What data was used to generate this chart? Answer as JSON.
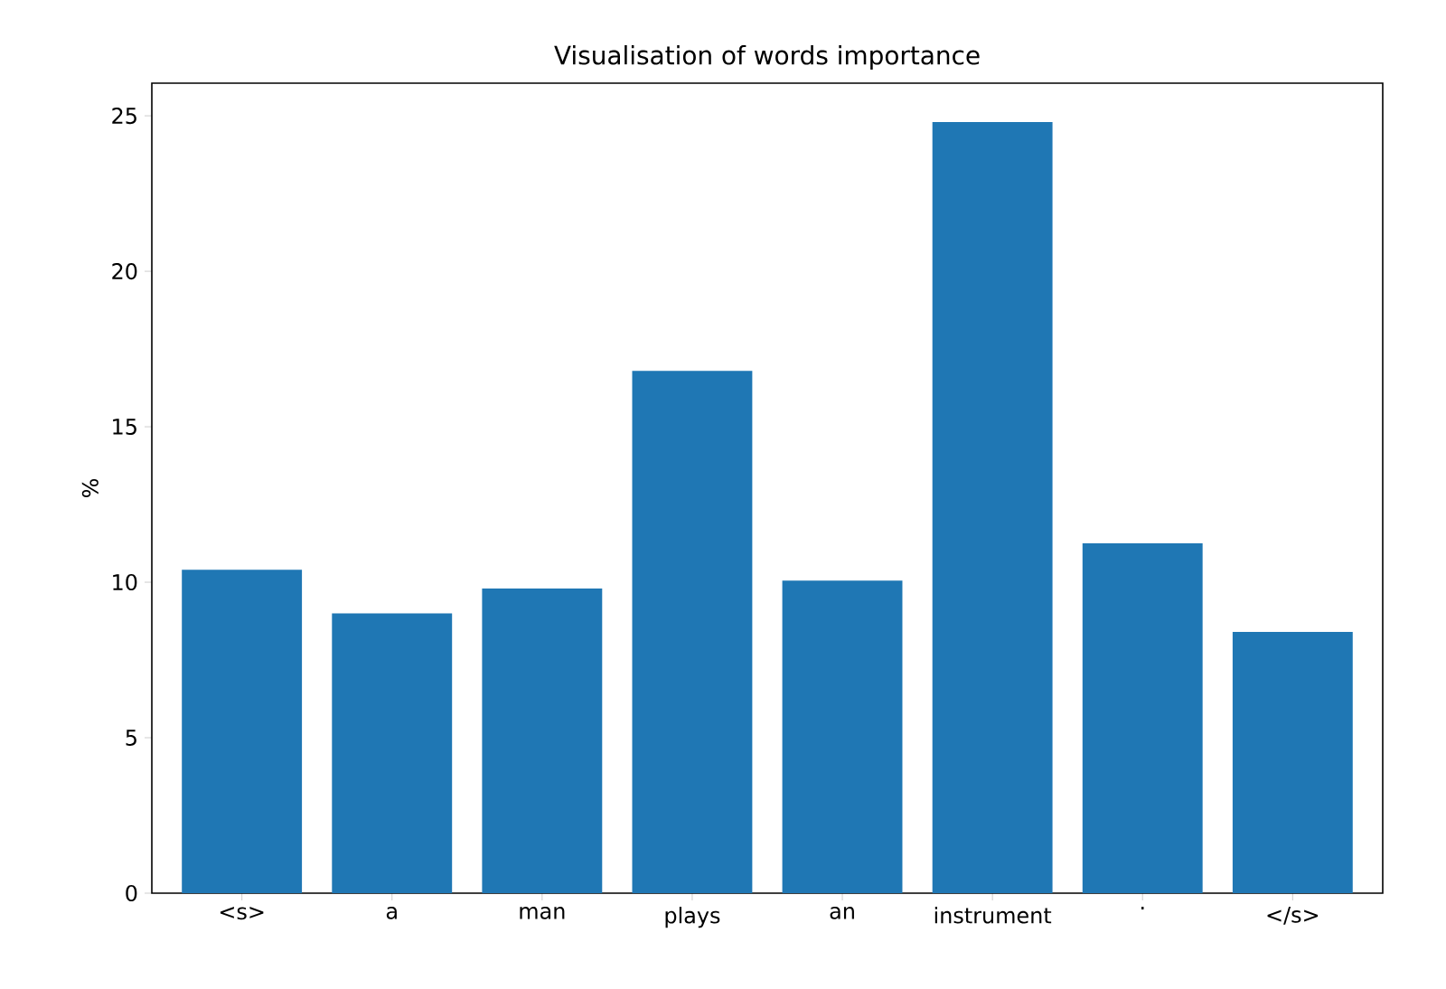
{
  "chart_data": {
    "type": "bar",
    "title": "Visualisation of words importance",
    "ylabel": "%",
    "categories": [
      "<s>",
      "a",
      "man",
      "plays",
      "an",
      "instrument",
      ".",
      "</s>"
    ],
    "values": [
      10.4,
      9.0,
      9.8,
      16.8,
      10.05,
      24.8,
      11.25,
      8.4
    ],
    "color": "#1f77b4",
    "ylim": [
      0,
      26.05
    ],
    "yticks": [
      0,
      5,
      10,
      15,
      20,
      25
    ]
  }
}
